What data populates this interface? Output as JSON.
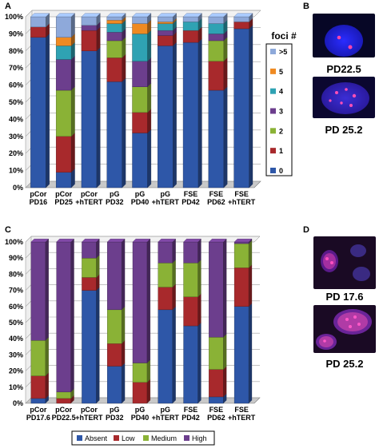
{
  "panels": {
    "A": "A",
    "B": "B",
    "C": "C",
    "D": "D"
  },
  "chart_data": [
    {
      "type": "bar",
      "stacked": true,
      "panel": "A",
      "categories": [
        [
          "pCor",
          "PD16"
        ],
        [
          "pCor",
          "PD25"
        ],
        [
          "pCor",
          "+hTERT"
        ],
        [
          "pG",
          "PD32"
        ],
        [
          "pG",
          "PD40"
        ],
        [
          "pG",
          "+hTERT"
        ],
        [
          "FSE",
          "PD42"
        ],
        [
          "FSE",
          "PD62"
        ],
        [
          "FSE",
          "+hTERT"
        ]
      ],
      "ylim": [
        0,
        100
      ],
      "yticks": [
        "0%",
        "10%",
        "20%",
        "30%",
        "40%",
        "50%",
        "60%",
        "70%",
        "80%",
        "90%",
        "100%"
      ],
      "legend_title": "foci #",
      "legend_position": "right",
      "series": [
        {
          "name": "0",
          "color": "#2E57A8",
          "values": [
            88,
            9,
            80,
            62,
            32,
            83,
            85,
            57,
            93
          ]
        },
        {
          "name": "1",
          "color": "#A8292C",
          "values": [
            6,
            21,
            12,
            14,
            12,
            6,
            7,
            17,
            4
          ]
        },
        {
          "name": "2",
          "color": "#8AB236",
          "values": [
            0,
            27,
            0,
            10,
            15,
            0,
            0,
            12,
            0
          ]
        },
        {
          "name": "3",
          "color": "#6C3E8D",
          "values": [
            0,
            18,
            3,
            5,
            15,
            3,
            0,
            4,
            0
          ]
        },
        {
          "name": "4",
          "color": "#2FA2B3",
          "values": [
            0,
            8,
            0,
            5,
            16,
            4,
            5,
            6,
            0
          ]
        },
        {
          "name": "5",
          "color": "#EF8A22",
          "values": [
            0,
            5,
            0,
            2,
            6,
            1,
            0,
            0,
            0
          ]
        },
        {
          "name": ">5",
          "color": "#8EA9DA",
          "values": [
            6,
            12,
            5,
            2,
            4,
            3,
            3,
            4,
            3
          ]
        }
      ]
    },
    {
      "type": "bar",
      "stacked": true,
      "panel": "C",
      "categories": [
        [
          "pCor",
          "PD17.6"
        ],
        [
          "pCor",
          "PD22.5"
        ],
        [
          "pCor",
          "+hTERT"
        ],
        [
          "pG",
          "PD32"
        ],
        [
          "pG",
          "PD40"
        ],
        [
          "pG",
          "+hTERT"
        ],
        [
          "FSE",
          "PD42"
        ],
        [
          "FSE",
          "PD62"
        ],
        [
          "FSE",
          "+hTERT"
        ]
      ],
      "ylim": [
        0,
        100
      ],
      "yticks": [
        "0%",
        "10%",
        "20%",
        "30%",
        "40%",
        "50%",
        "60%",
        "70%",
        "80%",
        "90%",
        "100%"
      ],
      "legend_position": "bottom",
      "series": [
        {
          "name": "Absent",
          "color": "#2E57A8",
          "values": [
            3,
            0,
            70,
            23,
            0,
            58,
            48,
            4,
            60
          ]
        },
        {
          "name": "Low",
          "color": "#A8292C",
          "values": [
            14,
            3,
            8,
            14,
            13,
            14,
            18,
            17,
            24
          ]
        },
        {
          "name": "Medium",
          "color": "#8AB236",
          "values": [
            22,
            4,
            12,
            21,
            12,
            15,
            21,
            20,
            15
          ]
        },
        {
          "name": "High",
          "color": "#6C3E8D",
          "values": [
            61,
            93,
            10,
            42,
            75,
            13,
            13,
            59,
            1
          ]
        }
      ]
    }
  ],
  "images": {
    "B": [
      {
        "caption": "PD22.5",
        "kind": "nucleus"
      },
      {
        "caption": "PD 25.2",
        "kind": "nucleus"
      }
    ],
    "D": [
      {
        "caption": "PD 17.6",
        "kind": "nucleus"
      },
      {
        "caption": "PD 25.2",
        "kind": "nucleus"
      }
    ]
  }
}
